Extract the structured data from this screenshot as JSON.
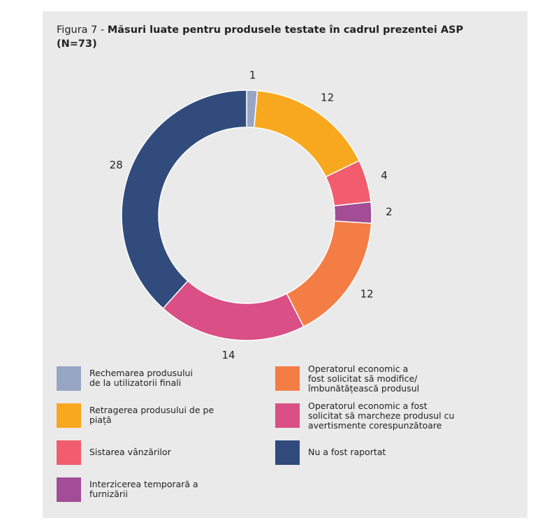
{
  "figure": {
    "prefix": "Figura 7 - ",
    "title": "Măsuri luate pentru produsele testate în cadrul prezentei ASP (N=73)"
  },
  "chart_data": {
    "type": "pie",
    "variant": "donut",
    "title": "Măsuri luate pentru produsele testate în cadrul prezentei ASP (N=73)",
    "total": 73,
    "slices": [
      {
        "label": "Rechemarea produsului de la utilizatorii finali",
        "value": 1,
        "color": "#96a6c4"
      },
      {
        "label": "Retragerea produsului de pe piață",
        "value": 12,
        "color": "#f8a81e"
      },
      {
        "label": "Sistarea vânzărilor",
        "value": 4,
        "color": "#f15d6c"
      },
      {
        "label": "Interzicerea temporară a furnizării",
        "value": 2,
        "color": "#a24d96"
      },
      {
        "label": "Operatorul economic a fost solicitat să modifice/ îmbunătățească produsul",
        "value": 12,
        "color": "#f47d45"
      },
      {
        "label": "Operatorul economic a fost solicitat să marcheze produsul cu avertismente corespunzătoare",
        "value": 14,
        "color": "#d94f86"
      },
      {
        "label": "Nu a fost raportat",
        "value": 28,
        "color": "#314b7c"
      }
    ]
  },
  "legend": [
    {
      "lines": [
        "Rechemarea produsului",
        "de la utilizatorii finali"
      ],
      "color": "#96a6c4"
    },
    {
      "lines": [
        "Retragerea produsului de pe",
        "piață"
      ],
      "color": "#f8a81e"
    },
    {
      "lines": [
        "Sistarea vânzărilor"
      ],
      "color": "#f15d6c"
    },
    {
      "lines": [
        "Interzicerea temporară a",
        "furnizării"
      ],
      "color": "#a24d96"
    },
    {
      "lines": [
        "Operatorul economic a",
        "fost solicitat să modifice/",
        "îmbunătățească produsul"
      ],
      "color": "#f47d45"
    },
    {
      "lines": [
        "Operatorul economic a fost",
        "solicitat să marcheze produsul cu",
        "avertismente corespunzătoare"
      ],
      "color": "#d94f86"
    },
    {
      "lines": [
        "Nu a fost raportat"
      ],
      "color": "#314b7c"
    }
  ]
}
